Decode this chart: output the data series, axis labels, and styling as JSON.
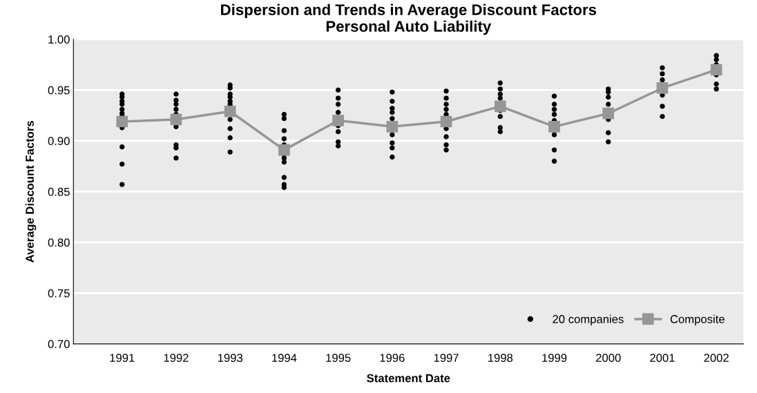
{
  "chart_data": {
    "type": "line",
    "title": "Dispersion and Trends in Average Discount Factors\nPersonal Auto Liability",
    "xlabel": "Statement Date",
    "ylabel": "Average Discount Factors",
    "series": [
      {
        "name": "20 companies",
        "type": "scatter",
        "marker": "circle",
        "color": "#000000",
        "x": [
          1991,
          1991,
          1991,
          1991,
          1991,
          1991,
          1991,
          1991,
          1991,
          1991,
          1991,
          1992,
          1992,
          1992,
          1992,
          1992,
          1992,
          1992,
          1992,
          1992,
          1993,
          1993,
          1993,
          1993,
          1993,
          1993,
          1993,
          1993,
          1993,
          1993,
          1994,
          1994,
          1994,
          1994,
          1994,
          1994,
          1994,
          1994,
          1994,
          1994,
          1994,
          1995,
          1995,
          1995,
          1995,
          1995,
          1995,
          1995,
          1995,
          1996,
          1996,
          1996,
          1996,
          1996,
          1996,
          1996,
          1996,
          1996,
          1997,
          1997,
          1997,
          1997,
          1997,
          1997,
          1997,
          1997,
          1997,
          1998,
          1998,
          1998,
          1998,
          1998,
          1998,
          1998,
          1998,
          1999,
          1999,
          1999,
          1999,
          1999,
          1999,
          1999,
          1999,
          2000,
          2000,
          2000,
          2000,
          2000,
          2000,
          2000,
          2001,
          2001,
          2001,
          2001,
          2001,
          2001,
          2002,
          2002,
          2002,
          2002,
          2002,
          2002
        ],
        "values": [
          0.946,
          0.943,
          0.939,
          0.936,
          0.931,
          0.927,
          0.924,
          0.913,
          0.894,
          0.877,
          0.857,
          0.946,
          0.94,
          0.936,
          0.931,
          0.926,
          0.914,
          0.896,
          0.893,
          0.883,
          0.955,
          0.952,
          0.946,
          0.943,
          0.939,
          0.936,
          0.921,
          0.912,
          0.903,
          0.889,
          0.926,
          0.922,
          0.91,
          0.902,
          0.896,
          0.887,
          0.883,
          0.879,
          0.864,
          0.857,
          0.854,
          0.95,
          0.942,
          0.936,
          0.928,
          0.915,
          0.909,
          0.899,
          0.895,
          0.948,
          0.939,
          0.932,
          0.928,
          0.922,
          0.906,
          0.898,
          0.893,
          0.884,
          0.949,
          0.942,
          0.936,
          0.931,
          0.926,
          0.912,
          0.904,
          0.896,
          0.891,
          0.957,
          0.951,
          0.946,
          0.942,
          0.93,
          0.924,
          0.913,
          0.909,
          0.944,
          0.936,
          0.931,
          0.926,
          0.92,
          0.906,
          0.891,
          0.88,
          0.951,
          0.948,
          0.943,
          0.936,
          0.921,
          0.908,
          0.899,
          0.972,
          0.966,
          0.96,
          0.945,
          0.934,
          0.924,
          0.984,
          0.98,
          0.975,
          0.965,
          0.956,
          0.951
        ]
      },
      {
        "name": "Composite",
        "marker": "square",
        "color": "#969696",
        "x": [
          1991,
          1992,
          1993,
          1994,
          1995,
          1996,
          1997,
          1998,
          1999,
          2000,
          2001,
          2002
        ],
        "values": [
          0.919,
          0.921,
          0.929,
          0.891,
          0.92,
          0.914,
          0.919,
          0.934,
          0.914,
          0.927,
          0.952,
          0.97
        ]
      }
    ],
    "xlim": [
      1990.1,
      2002.5
    ],
    "xticks": [
      1991,
      1992,
      1993,
      1994,
      1995,
      1996,
      1997,
      1998,
      1999,
      2000,
      2001,
      2002
    ],
    "ylim": [
      0.7,
      1.0
    ],
    "yticks": [
      {
        "value": 0.7,
        "label": "0.70"
      },
      {
        "value": 0.75,
        "label": "0.75"
      },
      {
        "value": 0.8,
        "label": "0.80"
      },
      {
        "value": 0.85,
        "label": "0.85"
      },
      {
        "value": 0.9,
        "label": "0.90"
      },
      {
        "value": 0.95,
        "label": "0.95"
      },
      {
        "value": 1.0,
        "label": "1.00"
      }
    ],
    "grid": "y",
    "legend": "bottom right"
  }
}
